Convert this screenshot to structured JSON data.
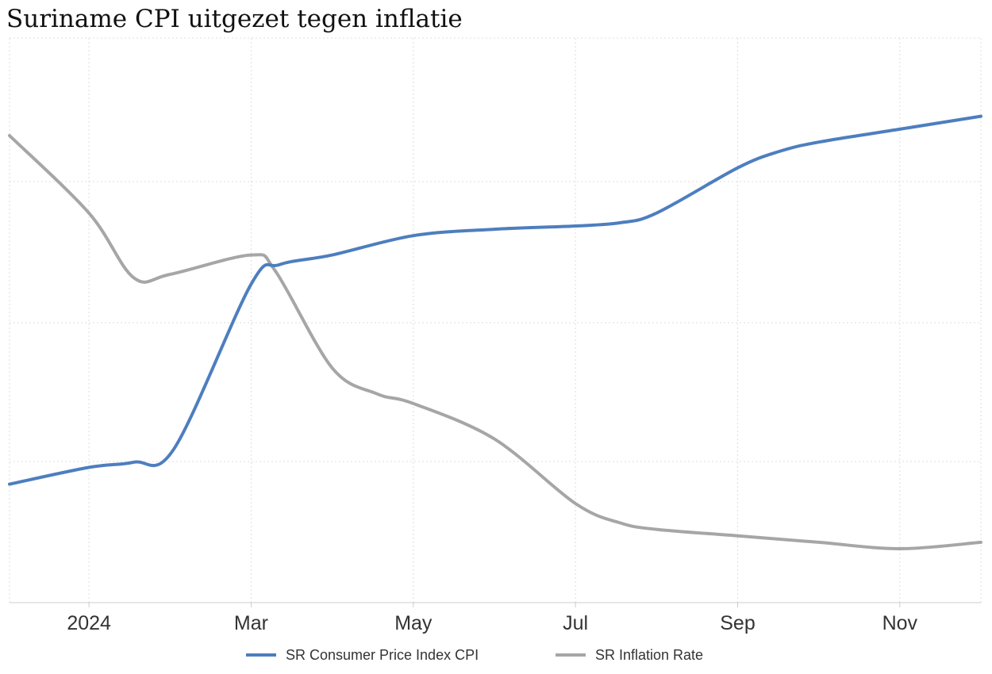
{
  "chart_data": {
    "type": "line",
    "title": "Suriname CPI uitgezet tegen inflatie",
    "x_ticks": [
      "2024",
      "Mar",
      "May",
      "Jul",
      "Sep",
      "Nov"
    ],
    "x_tick_months": [
      1,
      3,
      5,
      7,
      9,
      11
    ],
    "x_range_months": [
      0.02,
      12.0
    ],
    "grid": true,
    "legend_position": "bottom-center",
    "series": [
      {
        "name": "SR Consumer Price Index CPI",
        "color": "#4d7ebf",
        "x_months": [
          0.02,
          1.0,
          1.55,
          2.05,
          3.0,
          3.35,
          4.0,
          5.0,
          6.0,
          7.0,
          7.55,
          8.0,
          9.0,
          9.5,
          10.0,
          11.0,
          12.0
        ],
        "values": [
          1.0,
          1.26,
          1.34,
          1.55,
          4.1,
          4.4,
          4.55,
          4.85,
          4.95,
          5.0,
          5.05,
          5.2,
          5.9,
          6.15,
          6.3,
          6.5,
          6.7
        ]
      },
      {
        "name": "SR Inflation Rate",
        "color": "#a6a6a6",
        "x_months": [
          0.02,
          1.0,
          1.55,
          2.0,
          3.0,
          3.3,
          4.0,
          4.55,
          5.0,
          6.0,
          7.0,
          7.55,
          8.0,
          9.0,
          10.0,
          11.0,
          12.0
        ],
        "values": [
          6.4,
          5.2,
          4.2,
          4.25,
          4.55,
          4.3,
          2.8,
          2.4,
          2.25,
          1.7,
          0.7,
          0.4,
          0.3,
          0.2,
          0.1,
          0.0,
          0.1
        ]
      }
    ]
  }
}
